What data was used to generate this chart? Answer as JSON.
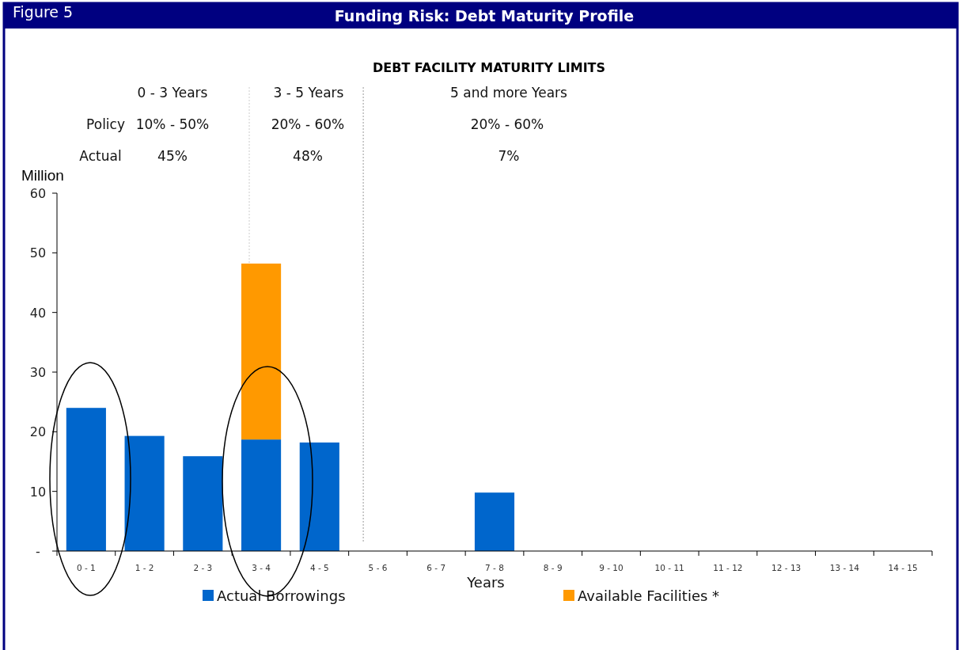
{
  "chart_data": {
    "type": "bar",
    "title": "Funding Risk: Debt Maturity Profile",
    "subtitle": "DEBT FACILITY MATURITY LIMITS",
    "xlabel": "Years",
    "ylabel": "Million",
    "categories": [
      "0 - 1",
      "1 - 2",
      "2 - 3",
      "3 - 4",
      "4 - 5",
      "5 - 6",
      "6 - 7",
      "7 - 8",
      "8 - 9",
      "9 - 10",
      "10 - 11",
      "11 - 12",
      "12 - 13",
      "13 - 14",
      "14 - 15"
    ],
    "stacked": true,
    "series": [
      {
        "name": "Actual Borrowings",
        "color": "#0066cc",
        "values": [
          24.0,
          19.3,
          15.9,
          18.7,
          18.2,
          0,
          0,
          9.8,
          0,
          0,
          0,
          0,
          0,
          0,
          0
        ]
      },
      {
        "name": "Available Facilities *",
        "color": "#ff9900",
        "values": [
          0,
          0,
          0,
          29.5,
          0,
          0,
          0,
          0,
          0,
          0,
          0,
          0,
          0,
          0,
          0
        ]
      }
    ],
    "ylim": [
      0,
      60
    ],
    "yticks": [
      {
        "value": 0,
        "label": "-"
      },
      10,
      20,
      30,
      40,
      50,
      60
    ],
    "annotations": [
      "Figure 5",
      "0 - 3 Years",
      "3 - 5 Years",
      "5 and more Years",
      "Policy",
      "10% - 50%",
      "20% - 60%",
      "20% - 60%",
      "Actual",
      "45%",
      "48%",
      "7%"
    ],
    "ref_lines": [
      {
        "axis": "x",
        "value": "5 - 6",
        "color": "#999999",
        "line_style": "dotted"
      }
    ],
    "legend": "bottom",
    "grid": false
  }
}
